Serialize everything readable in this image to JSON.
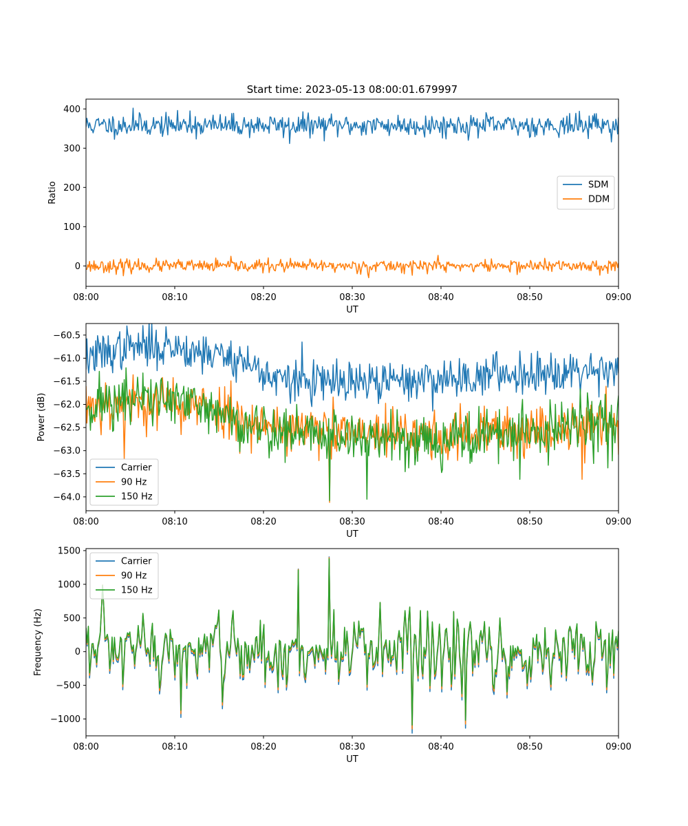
{
  "figure": {
    "title": "Start time: 2023-05-13 08:00:01.679997"
  },
  "chart_data": [
    {
      "type": "line",
      "xlabel": "UT",
      "ylabel": "Ratio",
      "xlim": [
        "08:00",
        "09:00"
      ],
      "ylim": [
        -52,
        425
      ],
      "xticks": [
        "08:00",
        "08:10",
        "08:20",
        "08:30",
        "08:40",
        "08:50",
        "09:00"
      ],
      "yticks": [
        0,
        100,
        200,
        300,
        400
      ],
      "ytick_labels": [
        "0",
        "100",
        "200",
        "300",
        "400"
      ],
      "legend_position": "center-right",
      "n_points": 600,
      "series": [
        {
          "name": "SDM",
          "color": "#1f77b4",
          "mean": 358,
          "noise": 14,
          "seed": 11,
          "spikes": [
            [
              5.3,
              402
            ],
            [
              11.7,
              395
            ],
            [
              22.9,
              312
            ],
            [
              57.5,
              388
            ]
          ]
        },
        {
          "name": "DDM",
          "color": "#ff7f0e",
          "mean": 0,
          "noise": 8,
          "seed": 23,
          "spikes": [
            [
              4.2,
              -25
            ],
            [
              31.9,
              -30
            ],
            [
              39.7,
              27
            ]
          ]
        }
      ]
    },
    {
      "type": "line",
      "xlabel": "UT",
      "ylabel": "Power (dB)",
      "xlim": [
        "08:00",
        "09:00"
      ],
      "ylim": [
        -64.3,
        -60.25
      ],
      "xticks": [
        "08:00",
        "08:10",
        "08:20",
        "08:30",
        "08:40",
        "08:50",
        "09:00"
      ],
      "yticks": [
        -60.5,
        -61.0,
        -61.5,
        -62.0,
        -62.5,
        -63.0,
        -63.5,
        -64.0
      ],
      "ytick_labels": [
        "−60.5",
        "−61.0",
        "−61.5",
        "−62.0",
        "−62.5",
        "−63.0",
        "−63.5",
        "−64.0"
      ],
      "legend_position": "lower-left",
      "n_points": 600,
      "series": [
        {
          "name": "Carrier",
          "color": "#1f77b4",
          "seed": 37,
          "noise": 0.22,
          "trend": [
            [
              0,
              -61.0
            ],
            [
              5,
              -60.75
            ],
            [
              10,
              -60.75
            ],
            [
              17,
              -61.0
            ],
            [
              22,
              -61.5
            ],
            [
              30,
              -61.55
            ],
            [
              40,
              -61.45
            ],
            [
              50,
              -61.3
            ],
            [
              60,
              -61.2
            ]
          ],
          "spikes": [
            [
              9.0,
              -60.32
            ],
            [
              24.3,
              -60.65
            ]
          ]
        },
        {
          "name": "90 Hz",
          "color": "#ff7f0e",
          "seed": 53,
          "noise": 0.28,
          "trend": [
            [
              0,
              -62.0
            ],
            [
              8,
              -61.95
            ],
            [
              15,
              -62.1
            ],
            [
              20,
              -62.45
            ],
            [
              30,
              -62.65
            ],
            [
              40,
              -62.7
            ],
            [
              50,
              -62.55
            ],
            [
              60,
              -62.35
            ]
          ],
          "spikes": [
            [
              4.3,
              -63.18
            ],
            [
              27.4,
              -64.12
            ],
            [
              55.9,
              -63.62
            ]
          ]
        },
        {
          "name": "150 Hz",
          "color": "#2ca02c",
          "seed": 71,
          "noise": 0.3,
          "trend": [
            [
              0,
              -62.0
            ],
            [
              8,
              -61.85
            ],
            [
              15,
              -62.2
            ],
            [
              20,
              -62.55
            ],
            [
              30,
              -62.7
            ],
            [
              40,
              -62.75
            ],
            [
              50,
              -62.6
            ],
            [
              60,
              -62.4
            ]
          ],
          "spikes": [
            [
              27.4,
              -64.08
            ],
            [
              31.7,
              -64.05
            ],
            [
              48.9,
              -63.62
            ],
            [
              56.5,
              -61.75
            ]
          ]
        }
      ]
    },
    {
      "type": "line",
      "xlabel": "UT",
      "ylabel": "Frequency (Hz)",
      "xlim": [
        "08:00",
        "09:00"
      ],
      "ylim": [
        -1250,
        1530
      ],
      "xticks": [
        "08:00",
        "08:10",
        "08:20",
        "08:30",
        "08:40",
        "08:50",
        "09:00"
      ],
      "yticks": [
        1500,
        1000,
        500,
        0,
        -500,
        -1000
      ],
      "ytick_labels": [
        "1500",
        "1000",
        "500",
        "0",
        "−500",
        "−1000"
      ],
      "legend_position": "upper-left",
      "n_points": 450,
      "base_seed": 97,
      "base_noise": 420,
      "base_spikes": [
        [
          27.4,
          1380
        ],
        [
          23.9,
          1210
        ],
        [
          36.8,
          -1090
        ],
        [
          42.8,
          -1020
        ],
        [
          10.7,
          -870
        ]
      ],
      "series": [
        {
          "name": "Carrier",
          "color": "#1f77b4",
          "offset": -55,
          "stretch": 1.06
        },
        {
          "name": "90 Hz",
          "color": "#ff7f0e",
          "offset": -25,
          "stretch": 1.03
        },
        {
          "name": "150 Hz",
          "color": "#2ca02c",
          "offset": 0,
          "stretch": 1.0
        }
      ]
    }
  ]
}
